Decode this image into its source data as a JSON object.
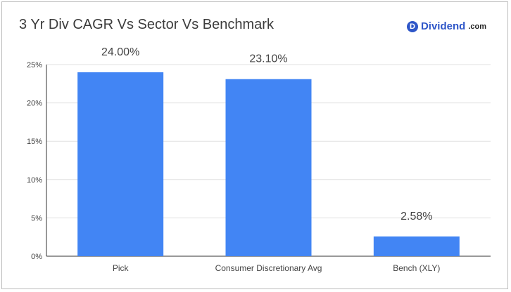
{
  "header": {
    "title": "3 Yr Div CAGR Vs Sector Vs Benchmark",
    "brand_icon_letter": "D",
    "brand_name": "Dividend",
    "brand_tld": ".com"
  },
  "colors": {
    "bar": "#4285f4",
    "grid": "#e0e0e0",
    "axis": "#333333",
    "label": "#444444",
    "brand": "#2e56c8"
  },
  "chart_data": {
    "type": "bar",
    "title": "3 Yr Div CAGR Vs Sector Vs Benchmark",
    "xlabel": "",
    "ylabel": "",
    "categories": [
      "Pick",
      "Consumer Discretionary Avg",
      "Bench (XLY)"
    ],
    "values": [
      24.0,
      23.1,
      2.58
    ],
    "data_labels": [
      "24.00%",
      "23.10%",
      "2.58%"
    ],
    "ylim": [
      0,
      25
    ],
    "yticks": [
      0,
      5,
      10,
      15,
      20,
      25
    ],
    "ytick_labels": [
      "0%",
      "5%",
      "10%",
      "15%",
      "20%",
      "25%"
    ],
    "grid": true,
    "legend": "none"
  }
}
